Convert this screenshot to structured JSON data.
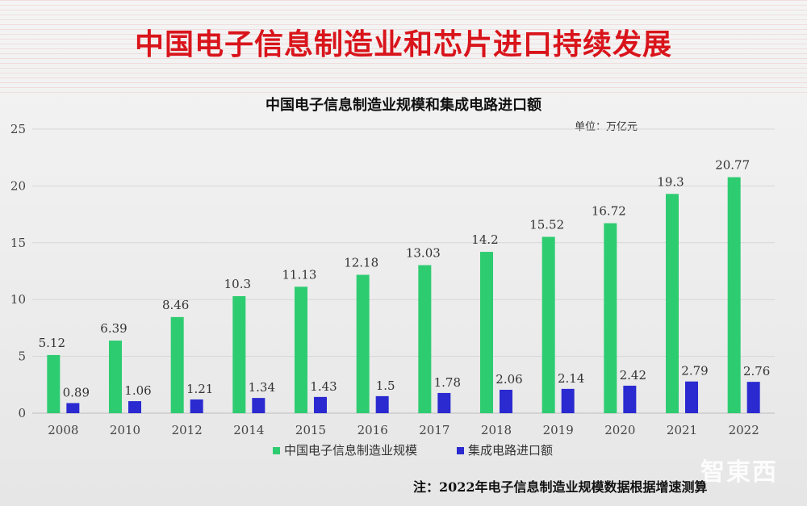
{
  "title": "中国电子信息制造业和芯片进口持续发展",
  "watermark": "智東西",
  "chart_data": {
    "type": "bar",
    "title": "中国电子信息制造业规模和集成电路进口额",
    "unit": "单位：万亿元",
    "categories": [
      "2008",
      "2010",
      "2012",
      "2014",
      "2015",
      "2016",
      "2017",
      "2018",
      "2019",
      "2020",
      "2021",
      "2022"
    ],
    "series": [
      {
        "name": "中国电子信息制造业规模",
        "color": "#2ecc71",
        "values": [
          5.12,
          6.39,
          8.46,
          10.3,
          11.13,
          12.18,
          13.03,
          14.2,
          15.52,
          16.72,
          19.3,
          20.77
        ],
        "labels": [
          "5.12",
          "6.39",
          "8.46",
          "10.3",
          "11.13",
          "12.18",
          "13.03",
          "14.2",
          "15.52",
          "16.72",
          "19.3",
          "20.77"
        ]
      },
      {
        "name": "集成电路进口额",
        "color": "#2a2ad0",
        "values": [
          0.89,
          1.06,
          1.21,
          1.34,
          1.43,
          1.5,
          1.78,
          2.06,
          2.14,
          2.42,
          2.79,
          2.76
        ],
        "labels": [
          "0.89",
          "1.06",
          "1.21",
          "1.34",
          "1.43",
          "1.5",
          "1.78",
          "2.06",
          "2.14",
          "2.42",
          "2.79",
          "2.76"
        ]
      }
    ],
    "yticks": [
      "0",
      "5",
      "10",
      "15",
      "20",
      "25"
    ],
    "ylim": [
      0,
      25
    ],
    "grid": true,
    "legend": "bottom"
  },
  "footnote": "注：2022年电子信息制造业规模数据根据增速测算"
}
